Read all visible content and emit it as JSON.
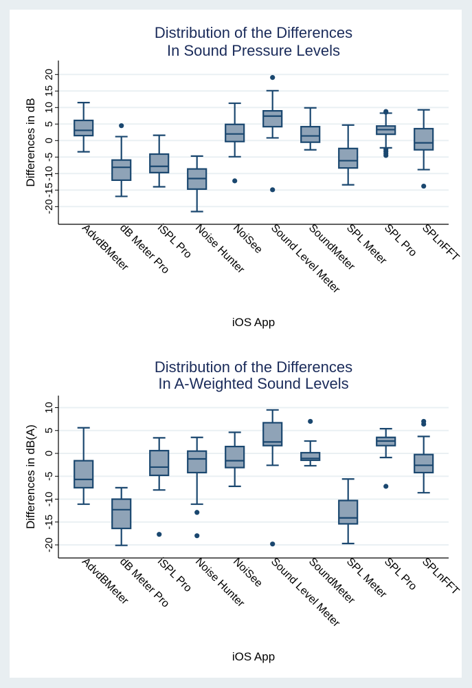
{
  "colors": {
    "box_fill": "#8fa3b7",
    "box_stroke": "#1a476f",
    "grid": "#eaf0f3",
    "title": "#1a2b5a",
    "background": "#e8eef1"
  },
  "chart_data": [
    {
      "type": "box",
      "title": [
        "Distribution of the Differences",
        "In Sound Pressure Levels"
      ],
      "xlabel": "iOS App",
      "ylabel": "Differences in dB",
      "ylim": [
        -25,
        25
      ],
      "yticks": [
        -20,
        -15,
        -10,
        -5,
        0,
        5,
        10,
        15,
        20
      ],
      "grid": true,
      "categories": [
        "AdvdBMeter",
        "dB Meter Pro",
        "iSPL Pro",
        "Noise Hunter",
        "NoiSee",
        "Sound Level Meter",
        "SoundMeter",
        "SPL Meter",
        "SPL Pro",
        "SPLnFFT"
      ],
      "boxes": [
        {
          "low": -3.4,
          "q1": 1.5,
          "median": 3.1,
          "q3": 6.1,
          "high": 11.5,
          "outliers": []
        },
        {
          "low": -16.9,
          "q1": -12.0,
          "median": -8.1,
          "q3": -5.9,
          "high": 1.2,
          "outliers": [
            4.5
          ]
        },
        {
          "low": -14.0,
          "q1": -9.7,
          "median": -7.8,
          "q3": -4.1,
          "high": 1.6,
          "outliers": []
        },
        {
          "low": -21.5,
          "q1": -14.7,
          "median": -11.5,
          "q3": -8.6,
          "high": -4.7,
          "outliers": []
        },
        {
          "low": -4.9,
          "q1": -0.3,
          "median": 2.0,
          "q3": 4.9,
          "high": 11.3,
          "outliers": [
            -12.2
          ]
        },
        {
          "low": 0.8,
          "q1": 4.2,
          "median": 7.4,
          "q3": 9.0,
          "high": 15.1,
          "outliers": [
            19.1,
            -14.9
          ]
        },
        {
          "low": -2.8,
          "q1": -0.5,
          "median": 1.4,
          "q3": 4.2,
          "high": 9.9,
          "outliers": []
        },
        {
          "low": -13.4,
          "q1": -8.3,
          "median": -6.1,
          "q3": -2.4,
          "high": 4.7,
          "outliers": []
        },
        {
          "low": -2.2,
          "q1": 1.9,
          "median": 3.3,
          "q3": 4.4,
          "high": 8.3,
          "outliers": [
            8.8,
            8.6,
            -2.7,
            -3.3,
            -3.9,
            -4.5
          ]
        },
        {
          "low": -8.8,
          "q1": -2.8,
          "median": -0.7,
          "q3": 3.6,
          "high": 9.3,
          "outliers": [
            -13.8
          ]
        }
      ]
    },
    {
      "type": "box",
      "title": [
        "Distribution of the Differences",
        "In A-Weighted Sound Levels"
      ],
      "xlabel": "iOS App",
      "ylabel": "Differences in dB(A)",
      "ylim": [
        -22.5,
        12.5
      ],
      "yticks": [
        -20,
        -15,
        -10,
        -5,
        0,
        5,
        10
      ],
      "grid": true,
      "categories": [
        "AdvdBMeter",
        "dB Meter Pro",
        "iSPL Pro",
        "Noise Hunter",
        "NoiSee",
        "Sound Level Meter",
        "SoundMeter",
        "SPL Meter",
        "SPL Pro",
        "SPLnFFT"
      ],
      "boxes": [
        {
          "low": -11.1,
          "q1": -7.5,
          "median": -5.7,
          "q3": -1.6,
          "high": 5.6,
          "outliers": []
        },
        {
          "low": -20.1,
          "q1": -16.4,
          "median": -12.3,
          "q3": -10.0,
          "high": -7.5,
          "outliers": []
        },
        {
          "low": -8.0,
          "q1": -4.8,
          "median": -3.0,
          "q3": 0.6,
          "high": 3.4,
          "outliers": [
            -17.7
          ]
        },
        {
          "low": -11.1,
          "q1": -4.2,
          "median": -1.2,
          "q3": 0.5,
          "high": 3.5,
          "outliers": [
            -12.9,
            -18.0
          ]
        },
        {
          "low": -7.2,
          "q1": -3.1,
          "median": -1.6,
          "q3": 1.5,
          "high": 4.6,
          "outliers": []
        },
        {
          "low": -2.6,
          "q1": 1.7,
          "median": 2.5,
          "q3": 6.7,
          "high": 9.5,
          "outliers": [
            -19.8
          ]
        },
        {
          "low": -2.7,
          "q1": -1.5,
          "median": -1.1,
          "q3": 0.15,
          "high": 2.7,
          "outliers": [
            7.0
          ]
        },
        {
          "low": -19.7,
          "q1": -15.4,
          "median": -14.1,
          "q3": -10.3,
          "high": -5.6,
          "outliers": []
        },
        {
          "low": -0.9,
          "q1": 1.7,
          "median": 2.7,
          "q3": 3.5,
          "high": 5.4,
          "outliers": [
            -7.2
          ]
        },
        {
          "low": -8.6,
          "q1": -4.2,
          "median": -2.6,
          "q3": -0.25,
          "high": 3.7,
          "outliers": [
            7.0,
            6.4
          ]
        }
      ]
    }
  ]
}
